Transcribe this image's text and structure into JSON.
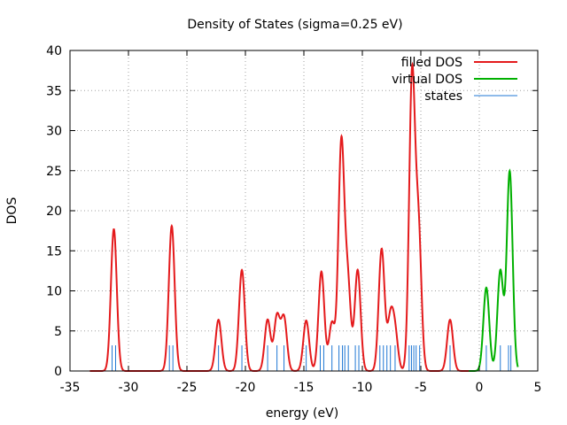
{
  "chart_data": {
    "type": "line",
    "title": "Density of States (sigma=0.25 eV)",
    "xlabel": "energy (eV)",
    "ylabel": "DOS",
    "xlim": [
      -35,
      5
    ],
    "ylim": [
      0,
      40
    ],
    "xticks": [
      -35,
      -30,
      -25,
      -20,
      -15,
      -10,
      -5,
      0,
      5
    ],
    "yticks": [
      0,
      5,
      10,
      15,
      20,
      25,
      30,
      35,
      40
    ],
    "grid": true,
    "legend_position": "top-right",
    "sigma": 0.25,
    "curve_range": [
      -33.3,
      3.3
    ],
    "series": [
      {
        "name": "filled DOS",
        "color": "#e41a1c",
        "range": [
          -33.3,
          -0.9
        ],
        "components": [
          {
            "center": -31.25,
            "height": 17.7
          },
          {
            "center": -26.3,
            "height": 18.1
          },
          {
            "center": -22.3,
            "height": 6.4
          },
          {
            "center": -20.3,
            "height": 12.6
          },
          {
            "center": -18.1,
            "height": 6.4
          },
          {
            "center": -17.3,
            "height": 6.8
          },
          {
            "center": -16.7,
            "height": 6.6
          },
          {
            "center": -14.8,
            "height": 6.3
          },
          {
            "center": -13.5,
            "height": 12.4
          },
          {
            "center": -12.6,
            "height": 6.0
          },
          {
            "center": -11.8,
            "height": 28.2
          },
          {
            "center": -11.25,
            "height": 11.0
          },
          {
            "center": -10.4,
            "height": 12.6
          },
          {
            "center": -8.35,
            "height": 15.2
          },
          {
            "center": -7.6,
            "height": 6.3
          },
          {
            "center": -7.2,
            "height": 4.5
          },
          {
            "center": -5.75,
            "height": 36.5
          },
          {
            "center": -5.2,
            "height": 17.5
          },
          {
            "center": -2.5,
            "height": 6.4
          }
        ]
      },
      {
        "name": "virtual DOS",
        "color": "#00b000",
        "range": [
          -0.9,
          3.3
        ],
        "components": [
          {
            "center": 0.6,
            "height": 10.4
          },
          {
            "center": 1.8,
            "height": 12.5
          },
          {
            "center": 2.6,
            "height": 24.9
          }
        ]
      },
      {
        "name": "states",
        "color": "#1f77d4",
        "height": 3.2,
        "energies": [
          -31.4,
          -31.1,
          -26.5,
          -26.2,
          -22.3,
          -20.3,
          -18.1,
          -17.3,
          -16.7,
          -14.8,
          -13.6,
          -13.3,
          -12.6,
          -12.0,
          -11.7,
          -11.5,
          -11.2,
          -10.6,
          -10.3,
          -8.5,
          -8.2,
          -7.9,
          -7.6,
          -7.2,
          -6.0,
          -5.8,
          -5.6,
          -5.4,
          -5.1,
          -2.5,
          0.6,
          1.8,
          2.5,
          2.7
        ]
      }
    ]
  }
}
